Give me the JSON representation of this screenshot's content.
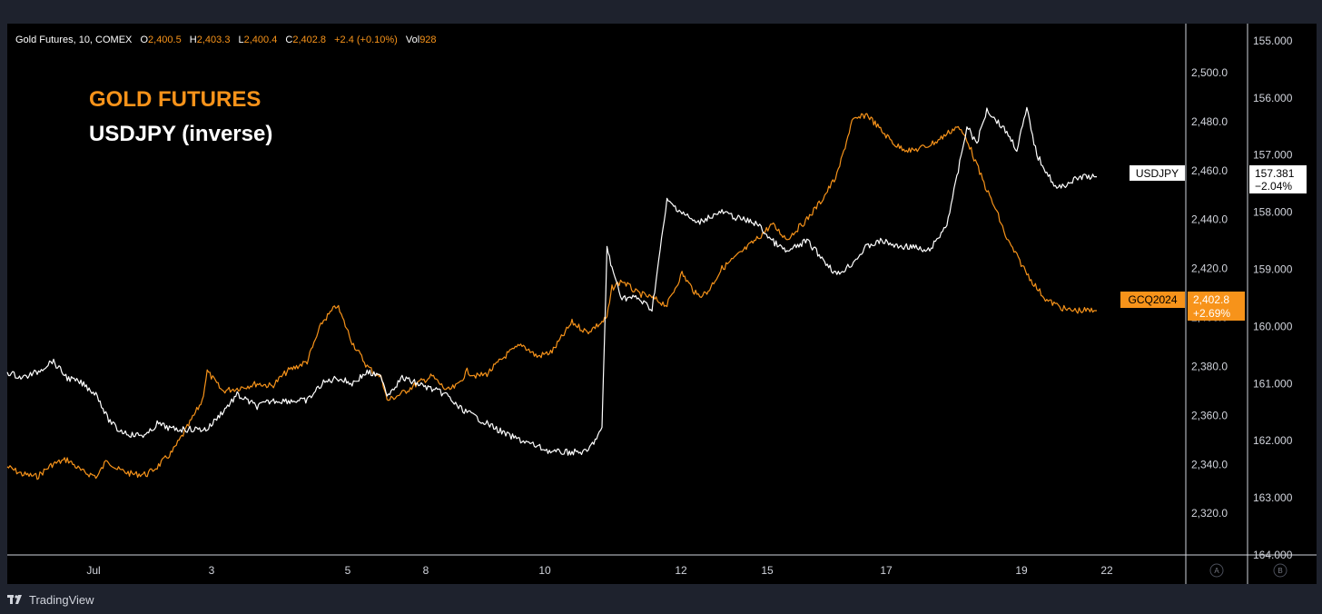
{
  "header": {
    "symbol_info": "Gold Futures, 10, COMEX",
    "o_label": "O",
    "o_value": "2,400.5",
    "h_label": "H",
    "h_value": "2,403.3",
    "l_label": "L",
    "l_value": "2,400.4",
    "c_label": "C",
    "c_value": "2,402.8",
    "change": "+2.4 (+0.10%)",
    "vol_label": "Vol",
    "vol_value": "928"
  },
  "overlay": {
    "title_gold": "GOLD FUTURES",
    "title_usdjpy": "USDJPY (inverse)"
  },
  "badges": {
    "usdjpy_name": "USDJPY",
    "usdjpy_price": "157.381",
    "usdjpy_change": "−2.04%",
    "gold_name": "GCQ2024",
    "gold_price": "2,402.8",
    "gold_change": "+2.69%"
  },
  "corner_buttons": {
    "left": "A",
    "right": "B"
  },
  "footer": {
    "brand": "TradingView"
  },
  "colors": {
    "background": "#000000",
    "frame": "#1e222d",
    "gold": "#f7931a",
    "usdjpy": "#ffffff",
    "axis_text": "#d1d4dc"
  },
  "chart_data": {
    "type": "line",
    "x_ticks": [
      "Jul",
      "3",
      "5",
      "8",
      "10",
      "12",
      "15",
      "17",
      "19",
      "22"
    ],
    "y_left": {
      "ticks": [
        "2,320.0",
        "2,340.0",
        "2,360.0",
        "2,380.0",
        "2,400.0",
        "2,420.0",
        "2,440.0",
        "2,460.0",
        "2,480.0",
        "2,500.0"
      ],
      "range": [
        2303,
        2520
      ]
    },
    "y_right": {
      "ticks": [
        "155.000",
        "156.000",
        "157.000",
        "158.000",
        "159.000",
        "160.000",
        "161.000",
        "162.000",
        "163.000",
        "164.000"
      ],
      "range": [
        154.7,
        164.0
      ],
      "inverted": true
    },
    "series": [
      {
        "name": "GCQ2024",
        "axis": "left",
        "color": "#f7931a",
        "x": [
          0,
          0.3,
          0.6,
          0.9,
          1.2,
          1.5,
          1.8,
          2.0,
          2.2,
          2.5,
          2.8,
          3.0,
          3.3,
          3.6,
          3.9,
          4.0,
          4.3,
          4.6,
          5.0,
          5.3,
          5.6,
          6.0,
          6.3,
          6.6,
          6.9,
          7.2,
          7.5,
          7.6,
          7.9,
          8.2,
          8.5,
          8.8,
          9.0,
          9.2,
          9.4,
          9.6,
          10.0,
          10.3,
          10.6,
          10.9,
          11.3,
          11.6,
          11.9,
          12.0,
          12.1,
          12.3,
          12.6,
          12.9,
          13.2,
          13.5,
          13.8,
          14.0,
          14.3,
          14.6,
          15.0,
          15.3,
          15.6,
          16.0,
          16.3,
          16.6,
          16.9,
          17.2,
          17.5,
          17.8,
          18.1,
          18.4,
          18.6,
          18.8,
          19.0,
          19.2,
          19.4,
          19.6,
          19.8,
          20.0,
          20.2,
          20.4,
          20.6,
          20.8,
          21.0,
          21.2,
          21.5,
          21.8
        ],
        "values": [
          2339,
          2336,
          2335,
          2340,
          2342,
          2337,
          2335,
          2342,
          2338,
          2336,
          2336,
          2339,
          2345,
          2355,
          2366,
          2378,
          2370,
          2371,
          2373,
          2372,
          2378,
          2382,
          2398,
          2405,
          2390,
          2380,
          2375,
          2366,
          2369,
          2373,
          2376,
          2370,
          2372,
          2378,
          2376,
          2377,
          2385,
          2389,
          2384,
          2386,
          2398,
          2394,
          2398,
          2400,
          2412,
          2415,
          2410,
          2408,
          2405,
          2418,
          2409,
          2410,
          2420,
          2425,
          2432,
          2438,
          2432,
          2440,
          2448,
          2458,
          2480,
          2483,
          2476,
          2470,
          2468,
          2470,
          2472,
          2475,
          2478,
          2473,
          2462,
          2452,
          2443,
          2432,
          2425,
          2418,
          2412,
          2407,
          2405,
          2403,
          2402.8,
          2402.8
        ]
      },
      {
        "name": "USDJPY",
        "axis": "right",
        "color": "#ffffff",
        "x": [
          0,
          0.3,
          0.6,
          0.9,
          1.2,
          1.5,
          1.8,
          2.0,
          2.2,
          2.5,
          2.8,
          3.0,
          3.3,
          3.6,
          3.9,
          4.0,
          4.3,
          4.6,
          5.0,
          5.3,
          5.6,
          6.0,
          6.3,
          6.6,
          6.9,
          7.2,
          7.5,
          7.6,
          7.9,
          8.2,
          8.5,
          8.8,
          9.0,
          9.2,
          9.4,
          9.6,
          10.0,
          10.3,
          10.6,
          10.9,
          11.3,
          11.6,
          11.9,
          12.0,
          12.1,
          12.3,
          12.6,
          12.9,
          13.2,
          13.5,
          13.8,
          14.0,
          14.3,
          14.6,
          15.0,
          15.3,
          15.6,
          16.0,
          16.3,
          16.6,
          16.9,
          17.2,
          17.5,
          17.8,
          18.1,
          18.4,
          18.6,
          18.8,
          19.0,
          19.2,
          19.4,
          19.6,
          19.8,
          20.0,
          20.2,
          20.4,
          20.6,
          20.8,
          21.0,
          21.2,
          21.5,
          21.8
        ],
        "values": [
          160.8,
          160.9,
          160.8,
          160.6,
          160.9,
          161.0,
          161.2,
          161.6,
          161.8,
          161.9,
          161.9,
          161.7,
          161.8,
          161.8,
          161.8,
          161.8,
          161.5,
          161.2,
          161.4,
          161.3,
          161.3,
          161.3,
          161.0,
          160.9,
          161.0,
          160.8,
          160.9,
          161.2,
          160.9,
          161.0,
          161.1,
          161.2,
          161.4,
          161.5,
          161.6,
          161.7,
          161.9,
          162.0,
          162.1,
          162.2,
          162.2,
          162.2,
          161.8,
          158.6,
          159.0,
          159.5,
          159.5,
          159.7,
          157.8,
          158.0,
          158.2,
          158.1,
          158.0,
          158.1,
          158.2,
          158.5,
          158.7,
          158.5,
          158.8,
          159.1,
          158.9,
          158.6,
          158.5,
          158.6,
          158.6,
          158.7,
          158.5,
          158.2,
          157.4,
          156.5,
          156.8,
          156.2,
          156.4,
          156.6,
          156.9,
          156.2,
          157.0,
          157.3,
          157.6,
          157.5,
          157.381,
          157.381
        ]
      }
    ]
  }
}
